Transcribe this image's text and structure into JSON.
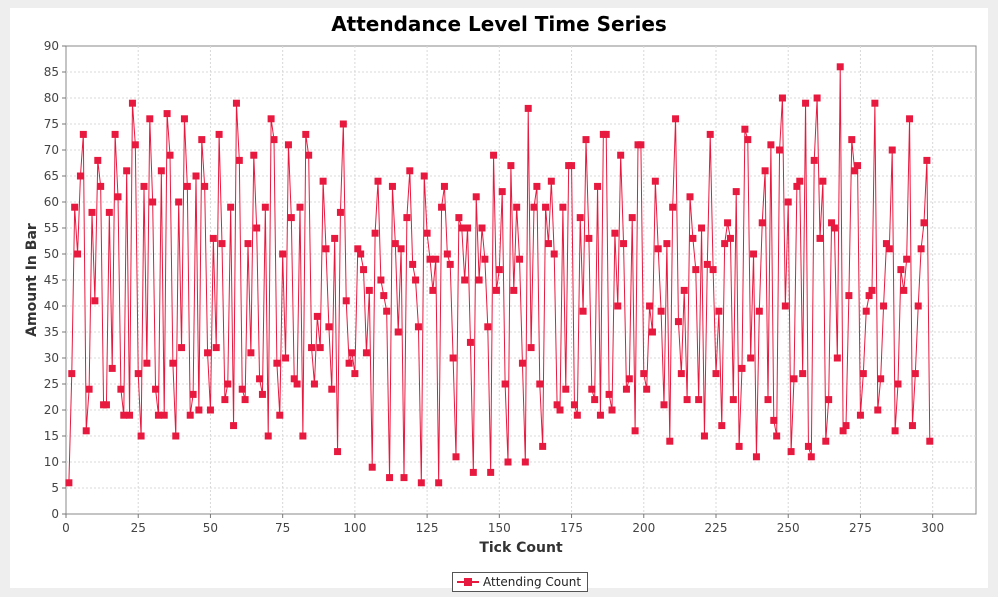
{
  "chart_data": {
    "type": "line",
    "title": "Attendance Level Time Series",
    "xlabel": "Tick Count",
    "ylabel": "Amount In Bar",
    "xlim": [
      0,
      315
    ],
    "ylim": [
      0,
      90
    ],
    "x_ticks": [
      0,
      25,
      50,
      75,
      100,
      125,
      150,
      175,
      200,
      225,
      250,
      275,
      300
    ],
    "y_ticks": [
      0,
      5,
      10,
      15,
      20,
      25,
      30,
      35,
      40,
      45,
      50,
      55,
      60,
      65,
      70,
      75,
      80,
      85,
      90
    ],
    "grid": true,
    "legend": "bottom-center",
    "series": [
      {
        "name": "Attending Count",
        "color": "#e8193f",
        "x_start": 1,
        "values": [
          6,
          27,
          59,
          50,
          65,
          73,
          16,
          24,
          58,
          41,
          68,
          63,
          21,
          21,
          58,
          28,
          73,
          61,
          24,
          19,
          66,
          19,
          79,
          71,
          27,
          15,
          63,
          29,
          76,
          60,
          24,
          19,
          66,
          19,
          77,
          69,
          29,
          15,
          60,
          32,
          76,
          63,
          19,
          23,
          65,
          20,
          72,
          63,
          31,
          20,
          53,
          32,
          73,
          52,
          22,
          25,
          59,
          17,
          79,
          68,
          24,
          22,
          52,
          31,
          69,
          55,
          26,
          23,
          59,
          15,
          76,
          72,
          29,
          19,
          50,
          30,
          71,
          57,
          26,
          25,
          59,
          15,
          73,
          69,
          32,
          25,
          38,
          32,
          64,
          51,
          36,
          24,
          53,
          12,
          58,
          75,
          41,
          29,
          31,
          27,
          51,
          50,
          47,
          31,
          43,
          9,
          54,
          64,
          45,
          42,
          39,
          7,
          63,
          52,
          35,
          51,
          7,
          57,
          66,
          48,
          45,
          36,
          6,
          65,
          54,
          49,
          43,
          49,
          6,
          59,
          63,
          50,
          48,
          30,
          11,
          57,
          55,
          45,
          55,
          33,
          8,
          61,
          45,
          55,
          49,
          36,
          8,
          69,
          43,
          47,
          62,
          25,
          10,
          67,
          43,
          59,
          49,
          29,
          10,
          78,
          32,
          59,
          63,
          25,
          13,
          59,
          52,
          64,
          50,
          21,
          20,
          59,
          24,
          67,
          67,
          21,
          19,
          57,
          39,
          72,
          53,
          24,
          22,
          63,
          19,
          73,
          73,
          23,
          20,
          54,
          40,
          69,
          52,
          24,
          26,
          57,
          16,
          71,
          71,
          27,
          24,
          40,
          35,
          64,
          51,
          39,
          21,
          52,
          14,
          59,
          76,
          37,
          27,
          43,
          22,
          61,
          53,
          47,
          22,
          55,
          15,
          48,
          73,
          47,
          27,
          39,
          17,
          52,
          56,
          53,
          22,
          62,
          13,
          28,
          74,
          72,
          30,
          50,
          11,
          39,
          56,
          66,
          22,
          71,
          18,
          15,
          70,
          80,
          40,
          60,
          12,
          26,
          63,
          64,
          27,
          79,
          13,
          11,
          68,
          80,
          53,
          64,
          14,
          22,
          56,
          55,
          30,
          86,
          16,
          17,
          42,
          72,
          66,
          67,
          19,
          27,
          39,
          42,
          43,
          79,
          20,
          26,
          40,
          52,
          51,
          70,
          16,
          25,
          47,
          43,
          49,
          76,
          17,
          27,
          40,
          51,
          56,
          68,
          14
        ]
      }
    ]
  }
}
